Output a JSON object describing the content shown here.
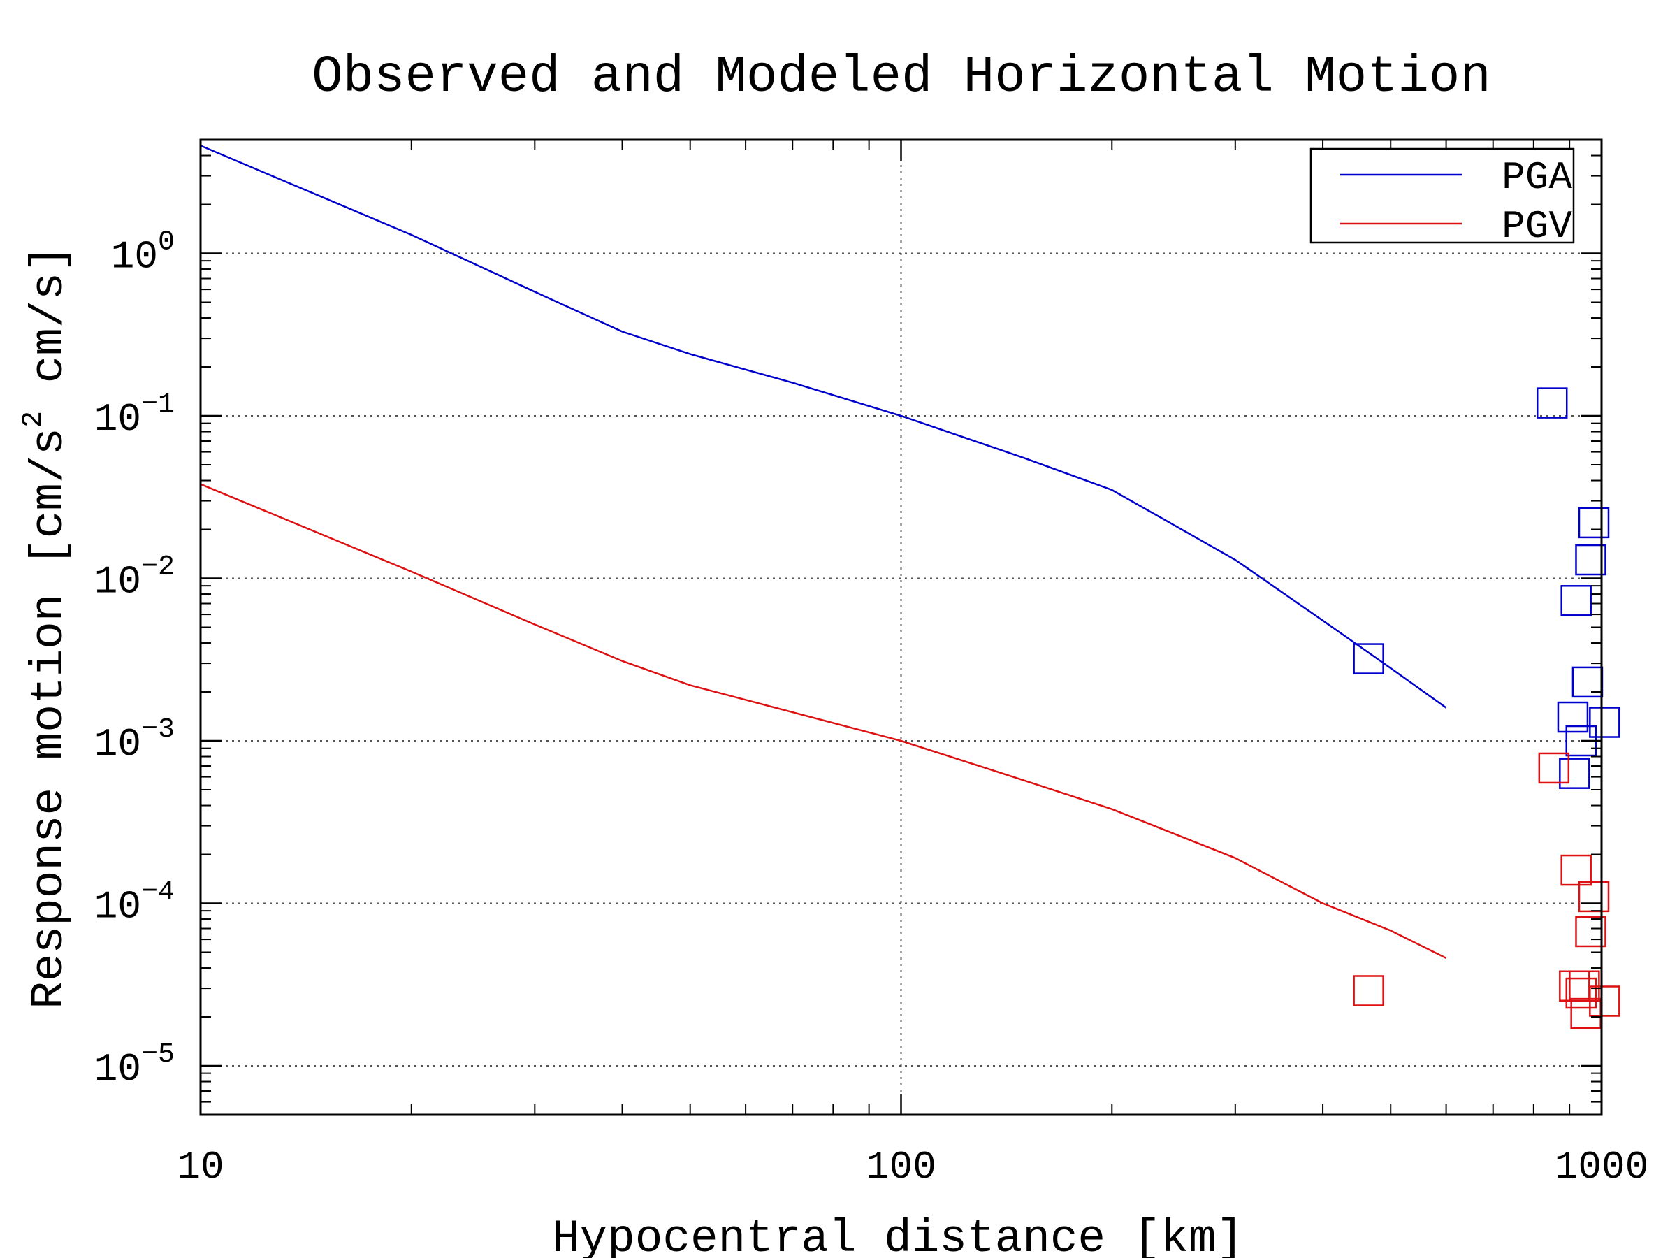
{
  "chart_data": {
    "type": "line",
    "title": "Observed and Modeled Horizontal Motion",
    "xlabel": "Hypocentral distance [km]",
    "ylabel": {
      "main": "Response motion [cm/s",
      "sup": "2",
      "tail": " cm/s]"
    },
    "xscale": "log",
    "yscale": "log",
    "xlim": [
      10,
      1000
    ],
    "ylim": [
      5e-06,
      5
    ],
    "x_ticks": [
      {
        "value": 10,
        "label": "10"
      },
      {
        "value": 100,
        "label": "100"
      },
      {
        "value": 1000,
        "label": "1000"
      }
    ],
    "y_ticks": [
      {
        "value": 1e-05,
        "base": "10",
        "exp": "−5"
      },
      {
        "value": 0.0001,
        "base": "10",
        "exp": "−4"
      },
      {
        "value": 0.001,
        "base": "10",
        "exp": "−3"
      },
      {
        "value": 0.01,
        "base": "10",
        "exp": "−2"
      },
      {
        "value": 0.1,
        "base": "10",
        "exp": "−1"
      },
      {
        "value": 1,
        "base": "10",
        "exp": "0"
      }
    ],
    "grid": true,
    "legend_position": "top-right",
    "series": [
      {
        "name": "PGA",
        "color": "#0000cc",
        "line": {
          "x": [
            10,
            20,
            30,
            40,
            50,
            70,
            100,
            150,
            200,
            300,
            400,
            500,
            600
          ],
          "y": [
            4.6,
            1.3,
            0.58,
            0.33,
            0.24,
            0.16,
            0.1,
            0.055,
            0.035,
            0.013,
            0.0055,
            0.0028,
            0.0016
          ]
        },
        "points": {
          "x": [
            465,
            850,
            975,
            965,
            920,
            955,
            910,
            935,
            1010,
            915
          ],
          "y": [
            0.0032,
            0.12,
            0.022,
            0.013,
            0.0073,
            0.0023,
            0.0014,
            0.001,
            0.0013,
            0.00063
          ]
        }
      },
      {
        "name": "PGV",
        "color": "#dd1111",
        "line": {
          "x": [
            10,
            20,
            30,
            40,
            50,
            70,
            100,
            150,
            200,
            300,
            400,
            500,
            600
          ],
          "y": [
            0.038,
            0.011,
            0.0052,
            0.0031,
            0.0022,
            0.0015,
            0.001,
            0.00057,
            0.00038,
            0.00019,
            0.0001,
            6.8e-05,
            4.6e-05
          ]
        },
        "points": {
          "x": [
            465,
            855,
            920,
            975,
            965,
            915,
            935,
            945,
            1010,
            950
          ],
          "y": [
            2.9e-05,
            0.00068,
            0.00016,
            0.00011,
            6.7e-05,
            3.1e-05,
            2.8e-05,
            3.1e-05,
            2.5e-05,
            2.1e-05
          ]
        }
      }
    ]
  }
}
